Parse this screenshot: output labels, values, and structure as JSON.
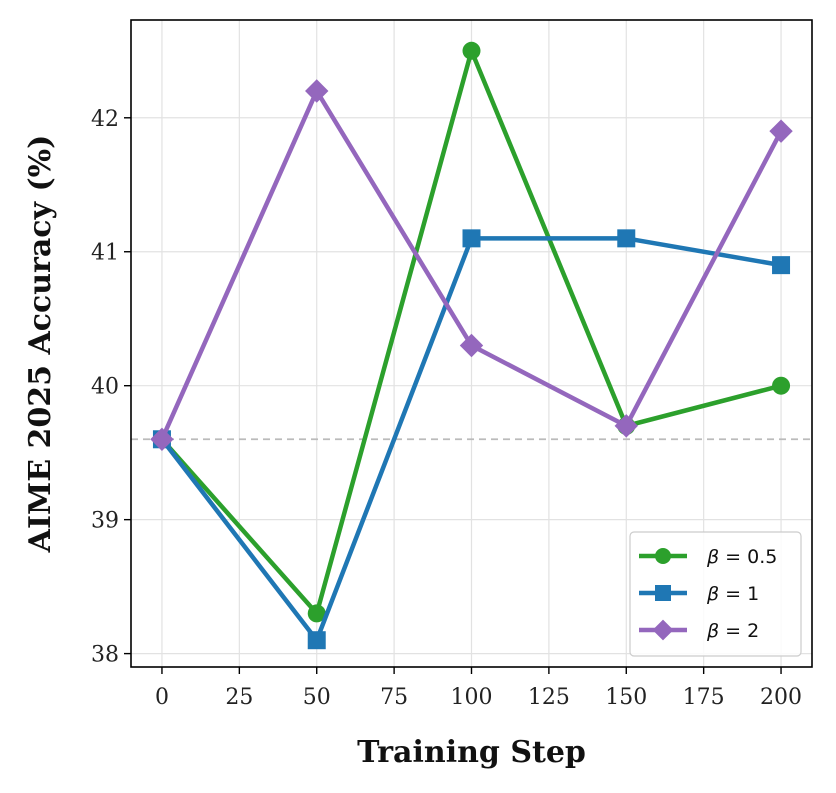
{
  "chart_data": {
    "type": "line",
    "x": [
      0,
      50,
      100,
      150,
      200
    ],
    "xlabel": "Training Step",
    "ylabel": "AIME 2025 Accuracy (%)",
    "xlim": [
      -10,
      210
    ],
    "ylim": [
      37.9,
      42.73
    ],
    "xticks": [
      0,
      25,
      50,
      75,
      100,
      125,
      150,
      175,
      200
    ],
    "yticks": [
      38,
      39,
      40,
      41,
      42
    ],
    "grid": true,
    "legend_position": "lower-right",
    "reference_line": {
      "y": 39.6,
      "style": "dashed",
      "color": "#bbbbbb"
    },
    "series": [
      {
        "name": "β = 0.5",
        "legend_symbol": "β",
        "legend_value": "= 0.5",
        "color": "#2ca02c",
        "marker": "circle",
        "values": [
          39.6,
          38.3,
          42.5,
          39.7,
          40.0
        ]
      },
      {
        "name": "β = 1",
        "legend_symbol": "β",
        "legend_value": "= 1",
        "color": "#1f77b4",
        "marker": "square",
        "values": [
          39.6,
          38.1,
          41.1,
          41.1,
          40.9
        ]
      },
      {
        "name": "β = 2",
        "legend_symbol": "β",
        "legend_value": "= 2",
        "color": "#9467bd",
        "marker": "diamond",
        "values": [
          39.6,
          42.2,
          40.3,
          39.7,
          41.9
        ]
      }
    ]
  }
}
